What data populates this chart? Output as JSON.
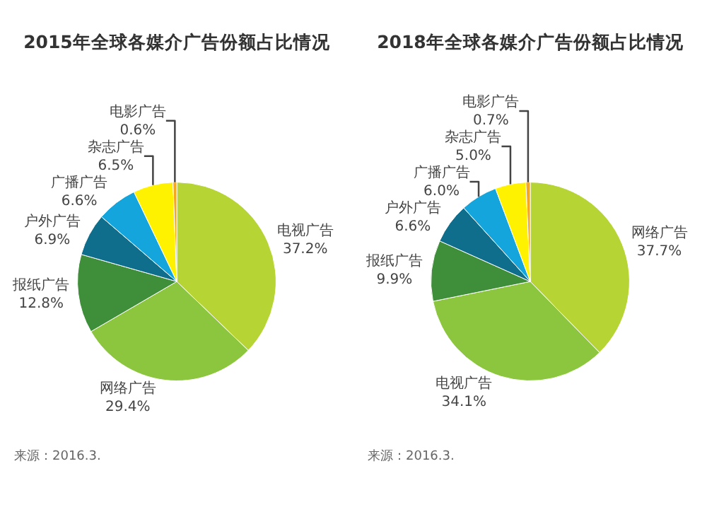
{
  "chart_data": [
    {
      "type": "pie",
      "title": "2015年全球各媒介广告份额占比情况",
      "categories": [
        "电视广告",
        "网络广告",
        "报纸广告",
        "户外广告",
        "广播广告",
        "杂志广告",
        "电影广告"
      ],
      "values": [
        37.2,
        29.4,
        12.8,
        6.9,
        6.6,
        6.5,
        0.6
      ],
      "value_labels": [
        "37.2%",
        "29.4%",
        "12.8%",
        "6.9%",
        "6.6%",
        "6.5%",
        "0.6%"
      ],
      "colors": [
        "#b6d433",
        "#8cc63e",
        "#3f8f3a",
        "#0e6e8c",
        "#13a5dc",
        "#fff200",
        "#f5a623"
      ],
      "legend": false,
      "annotations": [
        "来源：2016.3."
      ]
    },
    {
      "type": "pie",
      "title": "2018年全球各媒介广告份额占比情况",
      "categories": [
        "网络广告",
        "电视广告",
        "报纸广告",
        "户外广告",
        "广播广告",
        "杂志广告",
        "电影广告"
      ],
      "values": [
        37.7,
        34.1,
        9.9,
        6.6,
        6.0,
        5.0,
        0.7
      ],
      "value_labels": [
        "37.7%",
        "34.1%",
        "9.9%",
        "6.6%",
        "6.0%",
        "5.0%",
        "0.7%"
      ],
      "colors": [
        "#b6d433",
        "#8cc63e",
        "#3f8f3a",
        "#0e6e8c",
        "#13a5dc",
        "#fff200",
        "#f5a623"
      ],
      "legend": false,
      "annotations": [
        "来源：2016.3."
      ]
    }
  ]
}
